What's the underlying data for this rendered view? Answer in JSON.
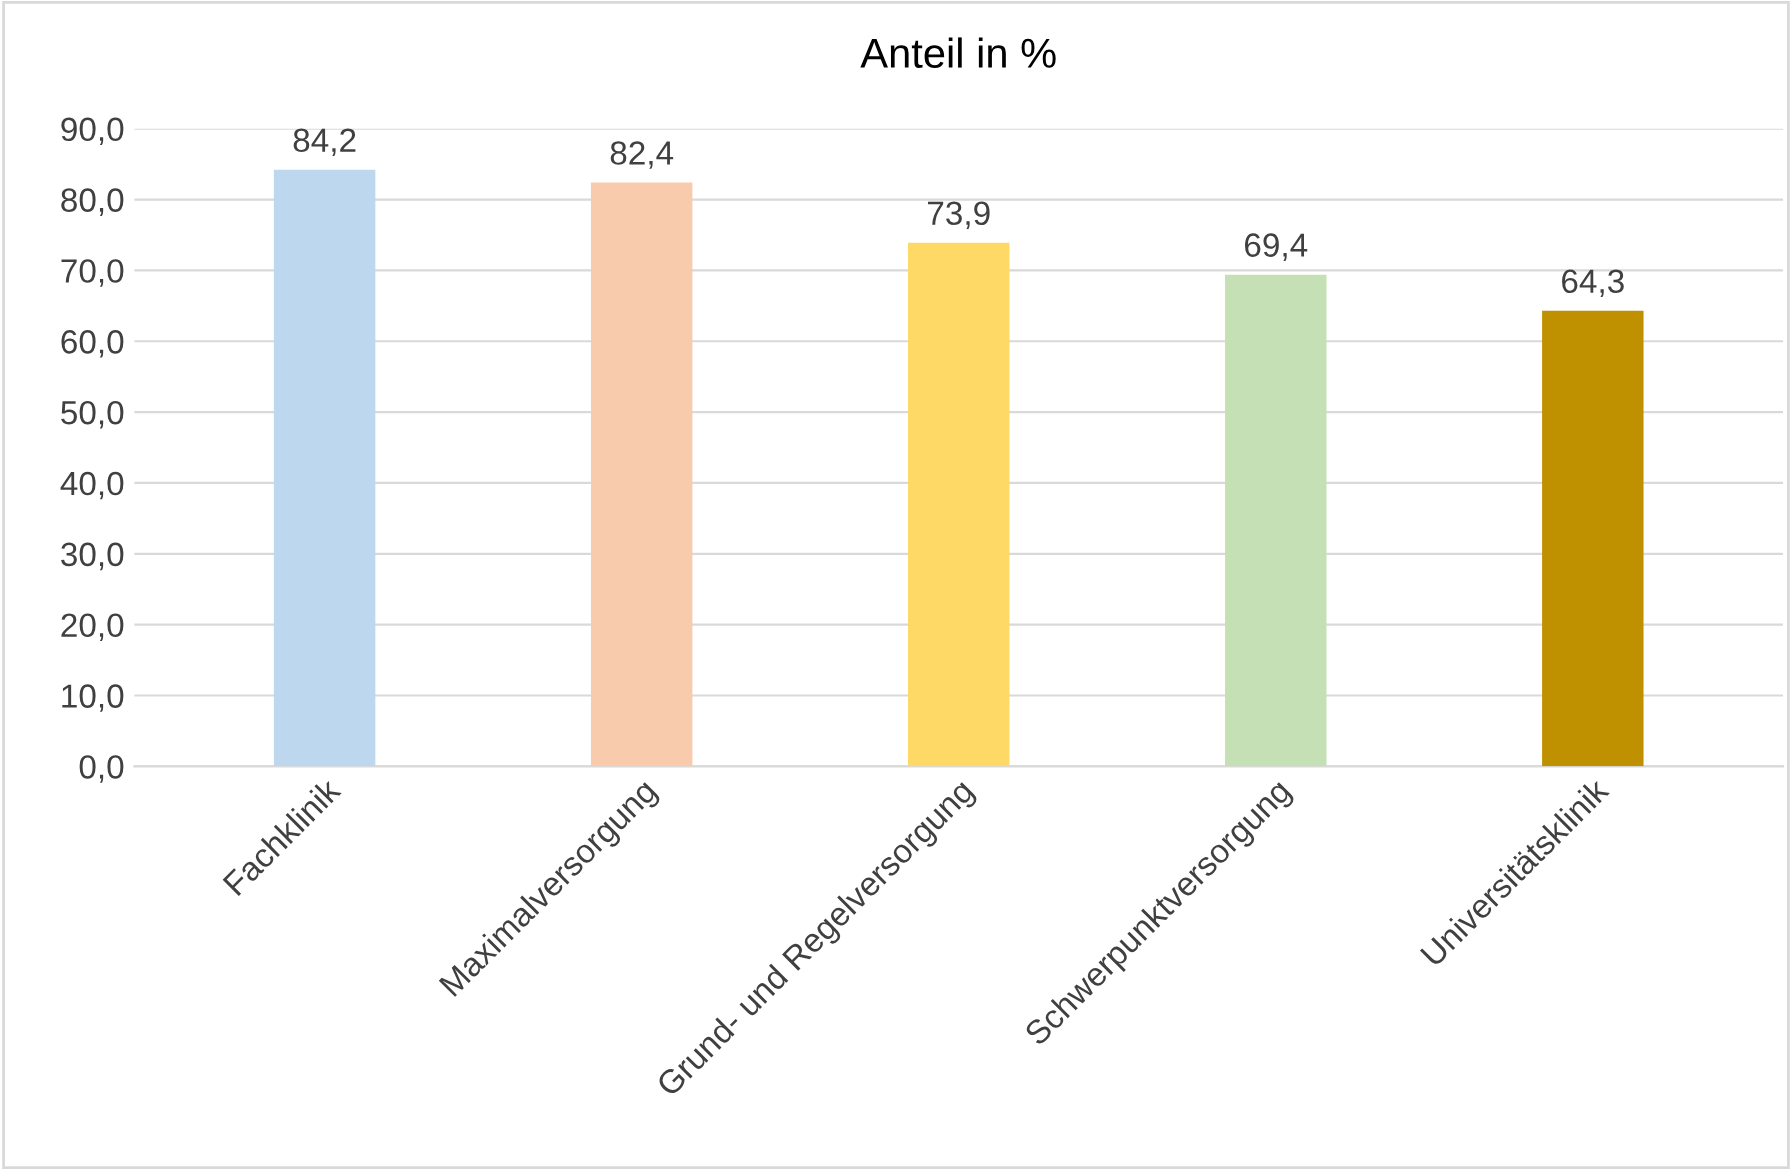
{
  "chart_data": {
    "type": "bar",
    "title": "Anteil in %",
    "categories": [
      "Fachklinik",
      "Maximalversorgung",
      "Grund- und Regelversorgung",
      "Schwerpunktversorgung",
      "Universitätsklinik"
    ],
    "values": [
      84.2,
      82.4,
      73.9,
      69.4,
      64.3
    ],
    "colors": [
      "#bdd7ee",
      "#f8cbad",
      "#ffd966",
      "#c5e0b4",
      "#bf9000"
    ],
    "value_labels": [
      "84,2",
      "82,4",
      "73,9",
      "69,4",
      "64,3"
    ],
    "ylim": [
      0,
      90
    ],
    "yticks": [
      {
        "value": 0,
        "label": "0,0"
      },
      {
        "value": 10,
        "label": "10,0"
      },
      {
        "value": 20,
        "label": "20,0"
      },
      {
        "value": 30,
        "label": "30,0"
      },
      {
        "value": 40,
        "label": "40,0"
      },
      {
        "value": 50,
        "label": "50,0"
      },
      {
        "value": 60,
        "label": "60,0"
      },
      {
        "value": 70,
        "label": "70,0"
      },
      {
        "value": 80,
        "label": "80,0"
      },
      {
        "value": 90,
        "label": "90,0"
      }
    ],
    "grid": "y"
  }
}
